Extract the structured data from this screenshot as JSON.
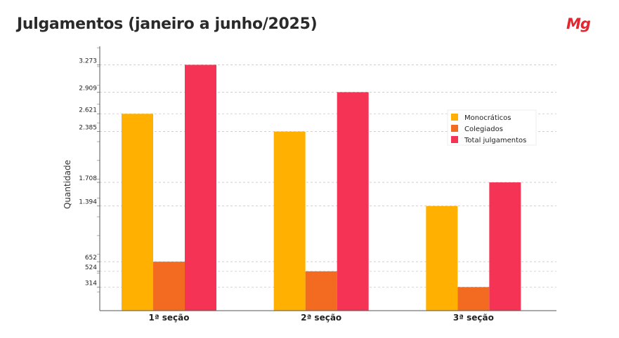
{
  "header": {
    "title": "Julgamentos (janeiro a junho/2025)",
    "logo": "Mg"
  },
  "chart_data": {
    "type": "bar",
    "title": "Julgamentos (janeiro a junho/2025)",
    "xlabel": "",
    "ylabel": "Quantidade",
    "categories": [
      "1ª seção",
      "2ª seção",
      "3ª seção"
    ],
    "series": [
      {
        "name": "Monocráticos",
        "color": "#FFB000",
        "values": [
          2621,
          2385,
          1394
        ]
      },
      {
        "name": "Colegiados",
        "color": "#F26B21",
        "values": [
          652,
          524,
          314
        ]
      },
      {
        "name": "Total julgamentos",
        "color": "#F53455",
        "values": [
          3273,
          2909,
          1708
        ]
      }
    ],
    "yticks": [
      314,
      524,
      652,
      1394,
      1708,
      2385,
      2621,
      2909,
      3273
    ],
    "ytick_labels": [
      "314",
      "524",
      "652",
      "1.394",
      "1.708",
      "2.385",
      "2.621",
      "2.909",
      "3.273"
    ],
    "ylim": [
      0,
      3520
    ],
    "grid": true,
    "legend_position": "right"
  }
}
